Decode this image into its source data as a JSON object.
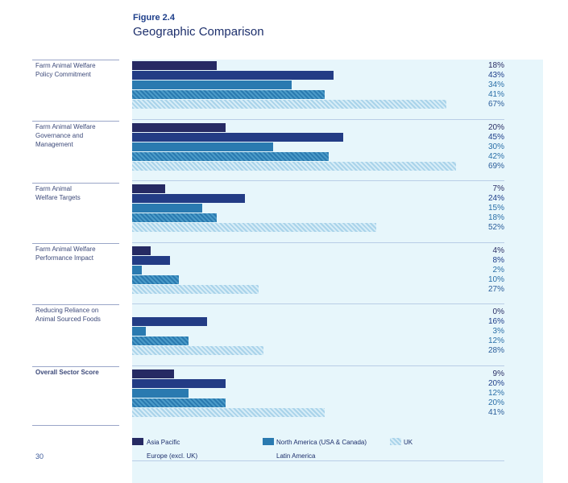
{
  "figure_label": "Figure 2.4",
  "figure_title": "Geographic Comparison",
  "page_number": "30",
  "colors": {
    "asia_pacific": "#262a63",
    "europe": "#233c85",
    "north_america": "#2a7ab0",
    "latin_america": "#4b9bc8",
    "uk": "#a9d3ea",
    "panel": "#e7f6fb"
  },
  "chart_data": {
    "type": "bar",
    "orientation": "horizontal",
    "categories": [
      "Farm Animal Welfare\nPolicy Commitment",
      "Farm Animal Welfare\nGovernance and\nManagement",
      "Farm Animal\nWelfare Targets",
      "Farm Animal Welfare\nPerformance Impact",
      "Reducing Reliance on\nAnimal Sourced Foods",
      "Overall Sector Score"
    ],
    "series": [
      {
        "name": "Asia Pacific",
        "values": [
          18,
          20,
          7,
          4,
          0,
          9
        ],
        "labels": [
          "18%",
          "20%",
          "7%",
          "4%",
          "0%",
          "9%"
        ]
      },
      {
        "name": "Europe (excl. UK)",
        "values": [
          43,
          45,
          24,
          8,
          16,
          20
        ],
        "labels": [
          "43%",
          "45%",
          "24%",
          "8%",
          "16%",
          "20%"
        ]
      },
      {
        "name": "North America (USA & Canada)",
        "values": [
          34,
          30,
          15,
          2,
          3,
          12
        ],
        "labels": [
          "34%",
          "30%",
          "15%",
          "2%",
          "3%",
          "12%"
        ]
      },
      {
        "name": "Latin America",
        "values": [
          41,
          42,
          18,
          10,
          12,
          20
        ],
        "labels": [
          "41%",
          "42%",
          "18%",
          "10%",
          "12%",
          "20%"
        ]
      },
      {
        "name": "UK",
        "values": [
          67,
          69,
          52,
          27,
          28,
          41
        ],
        "labels": [
          "67%",
          "69%",
          "52%",
          "27%",
          "28%",
          "41%"
        ]
      }
    ],
    "xlim": [
      0,
      100
    ],
    "grid": false,
    "legend_position": "bottom"
  }
}
